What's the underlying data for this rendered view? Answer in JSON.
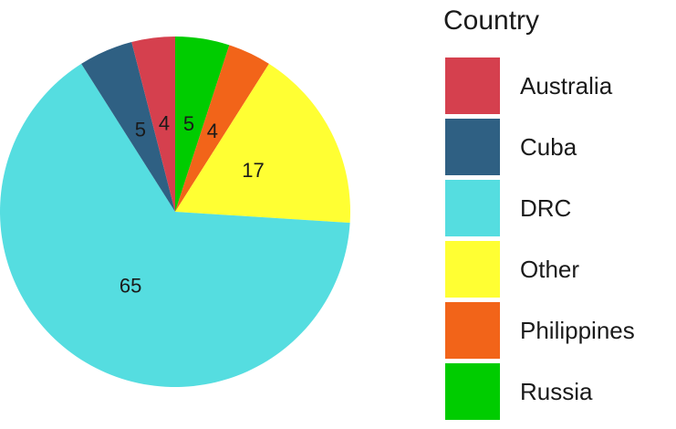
{
  "chart_data": {
    "type": "pie",
    "legend_title": "Country",
    "categories": [
      "Australia",
      "Cuba",
      "DRC",
      "Other",
      "Philippines",
      "Russia"
    ],
    "values": [
      4,
      5,
      65,
      17,
      4,
      5
    ],
    "colors": [
      "#d5404e",
      "#2f6083",
      "#55dde0",
      "#ffff33",
      "#f26419",
      "#00cc00"
    ],
    "legend": "right"
  }
}
